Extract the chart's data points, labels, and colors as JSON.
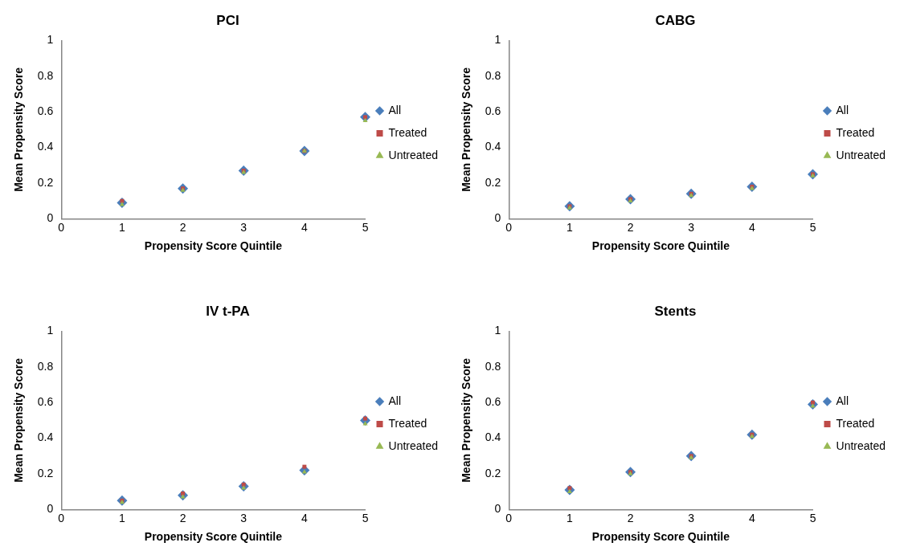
{
  "chart_data": [
    {
      "type": "scatter",
      "title": "PCI",
      "xlabel": "Propensity Score Quintile",
      "ylabel": "Mean Propensity Score",
      "x": [
        1,
        2,
        3,
        4,
        5
      ],
      "xlim": [
        0,
        5
      ],
      "xticks": [
        0,
        1,
        2,
        3,
        4,
        5
      ],
      "ylim": [
        0,
        1
      ],
      "yticks": [
        0,
        0.2,
        0.4,
        0.6,
        0.8,
        1
      ],
      "grid": false,
      "legend": "right",
      "series": [
        {
          "name": "All",
          "color": "#4a7ebb",
          "marker": "diamond",
          "values": [
            0.09,
            0.17,
            0.27,
            0.38,
            0.57
          ]
        },
        {
          "name": "Treated",
          "color": "#be4b48",
          "marker": "square",
          "values": [
            0.1,
            0.17,
            0.27,
            0.38,
            0.57
          ]
        },
        {
          "name": "Untreated",
          "color": "#98b954",
          "marker": "triangle",
          "values": [
            0.08,
            0.16,
            0.26,
            0.38,
            0.55
          ]
        }
      ]
    },
    {
      "type": "scatter",
      "title": "CABG",
      "xlabel": "Propensity Score Quintile",
      "ylabel": "Mean Propensity Score",
      "x": [
        1,
        2,
        3,
        4,
        5
      ],
      "xlim": [
        0,
        5
      ],
      "xticks": [
        0,
        1,
        2,
        3,
        4,
        5
      ],
      "ylim": [
        0,
        1
      ],
      "yticks": [
        0,
        0.2,
        0.4,
        0.6,
        0.8,
        1
      ],
      "grid": false,
      "legend": "right",
      "series": [
        {
          "name": "All",
          "color": "#4a7ebb",
          "marker": "diamond",
          "values": [
            0.07,
            0.11,
            0.14,
            0.18,
            0.25
          ]
        },
        {
          "name": "Treated",
          "color": "#be4b48",
          "marker": "square",
          "values": [
            0.07,
            0.11,
            0.14,
            0.18,
            0.25
          ]
        },
        {
          "name": "Untreated",
          "color": "#98b954",
          "marker": "triangle",
          "values": [
            0.06,
            0.1,
            0.13,
            0.17,
            0.24
          ]
        }
      ]
    },
    {
      "type": "scatter",
      "title": "IV t-PA",
      "xlabel": "Propensity Score Quintile",
      "ylabel": "Mean Propensity Score",
      "x": [
        1,
        2,
        3,
        4,
        5
      ],
      "xlim": [
        0,
        5
      ],
      "xticks": [
        0,
        1,
        2,
        3,
        4,
        5
      ],
      "ylim": [
        0,
        1
      ],
      "yticks": [
        0,
        0.2,
        0.4,
        0.6,
        0.8,
        1
      ],
      "grid": false,
      "legend": "right",
      "series": [
        {
          "name": "All",
          "color": "#4a7ebb",
          "marker": "diamond",
          "values": [
            0.05,
            0.08,
            0.13,
            0.22,
            0.5
          ]
        },
        {
          "name": "Treated",
          "color": "#be4b48",
          "marker": "square",
          "values": [
            0.05,
            0.09,
            0.14,
            0.24,
            0.51
          ]
        },
        {
          "name": "Untreated",
          "color": "#98b954",
          "marker": "triangle",
          "values": [
            0.04,
            0.07,
            0.12,
            0.21,
            0.48
          ]
        }
      ]
    },
    {
      "type": "scatter",
      "title": "Stents",
      "xlabel": "Propensity Score Quintile",
      "ylabel": "Mean Propensity Score",
      "x": [
        1,
        2,
        3,
        4,
        5
      ],
      "xlim": [
        0,
        5
      ],
      "xticks": [
        0,
        1,
        2,
        3,
        4,
        5
      ],
      "ylim": [
        0,
        1
      ],
      "yticks": [
        0,
        0.2,
        0.4,
        0.6,
        0.8,
        1
      ],
      "grid": false,
      "legend": "right",
      "series": [
        {
          "name": "All",
          "color": "#4a7ebb",
          "marker": "diamond",
          "values": [
            0.11,
            0.21,
            0.3,
            0.42,
            0.59
          ]
        },
        {
          "name": "Treated",
          "color": "#be4b48",
          "marker": "square",
          "values": [
            0.12,
            0.21,
            0.3,
            0.42,
            0.6
          ]
        },
        {
          "name": "Untreated",
          "color": "#98b954",
          "marker": "triangle",
          "values": [
            0.1,
            0.2,
            0.29,
            0.41,
            0.58
          ]
        }
      ]
    }
  ]
}
